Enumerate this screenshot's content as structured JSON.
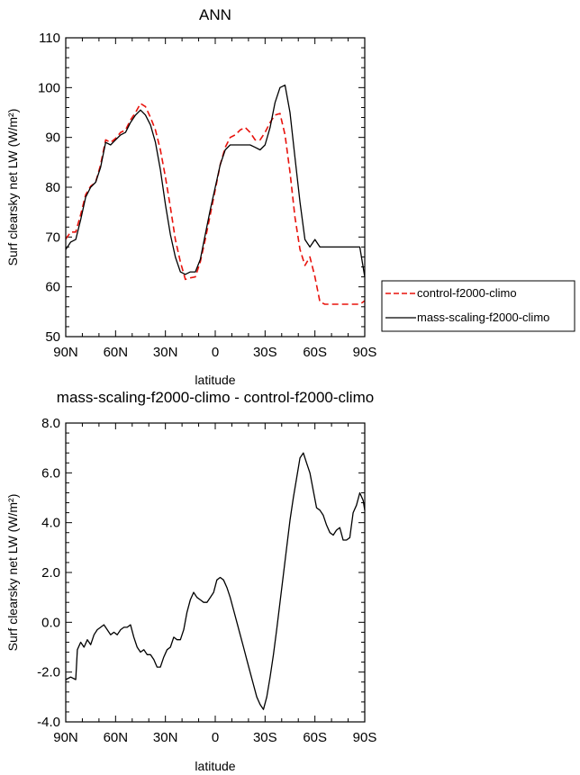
{
  "chart_data": [
    {
      "type": "line",
      "title": "ANN",
      "xlabel": "latitude",
      "ylabel": "Surf clearsky net LW (W/m²)",
      "xlim": [
        90,
        -90
      ],
      "ylim": [
        50,
        110
      ],
      "xticks": [
        90,
        60,
        30,
        0,
        -30,
        -60,
        -90
      ],
      "xtick_labels": [
        "90N",
        "60N",
        "30N",
        "0",
        "30S",
        "60S",
        "90S"
      ],
      "yticks": [
        50,
        60,
        70,
        80,
        90,
        100,
        110
      ],
      "ytick_labels": [
        "50",
        "60",
        "70",
        "80",
        "90",
        "100",
        "110"
      ],
      "legend_position": "right",
      "series": [
        {
          "name": "control-f2000-climo",
          "color": "#e8120c",
          "dash": "dashed",
          "x": [
            90,
            87,
            84,
            81,
            78,
            75,
            72,
            69,
            66,
            63,
            60,
            57,
            54,
            51,
            48,
            45,
            42,
            39,
            36,
            33,
            30,
            27,
            24,
            21,
            18,
            15,
            12,
            9,
            6,
            3,
            0,
            -3,
            -6,
            -9,
            -12,
            -15,
            -18,
            -21,
            -24,
            -27,
            -30,
            -33,
            -36,
            -39,
            -42,
            -45,
            -48,
            -51,
            -54,
            -57,
            -60,
            -63,
            -66,
            -69,
            -72,
            -75,
            -78,
            -81,
            -84,
            -87,
            -90
          ],
          "y": [
            69.6,
            71.0,
            71.0,
            74.5,
            78.5,
            80.2,
            81.0,
            84.5,
            89.5,
            89.0,
            89.8,
            91.0,
            91.5,
            93.5,
            95.0,
            96.8,
            96.2,
            94.0,
            91.5,
            87.5,
            82.0,
            76.0,
            69.5,
            65.0,
            61.5,
            61.8,
            62.0,
            65.0,
            69.5,
            74.5,
            79.5,
            84.5,
            88.0,
            90.0,
            90.5,
            91.5,
            92.0,
            91.0,
            89.5,
            89.5,
            91.0,
            93.0,
            94.5,
            94.8,
            90.5,
            83.0,
            74.0,
            67.5,
            64.3,
            66.0,
            62.0,
            57.0,
            56.5,
            56.5,
            56.5,
            56.5,
            56.5,
            56.5,
            56.5,
            56.5,
            57.2
          ]
        },
        {
          "name": "mass-scaling-f2000-climo",
          "color": "#000000",
          "dash": "solid",
          "x": [
            90,
            87,
            84,
            81,
            78,
            75,
            72,
            69,
            66,
            63,
            60,
            57,
            54,
            51,
            48,
            45,
            42,
            39,
            36,
            33,
            30,
            27,
            24,
            21,
            18,
            15,
            12,
            9,
            6,
            3,
            0,
            -3,
            -6,
            -9,
            -12,
            -15,
            -18,
            -21,
            -24,
            -27,
            -30,
            -33,
            -36,
            -39,
            -42,
            -45,
            -48,
            -51,
            -54,
            -57,
            -60,
            -63,
            -66,
            -69,
            -72,
            -75,
            -78,
            -81,
            -84,
            -87,
            -90
          ],
          "y": [
            67.5,
            69.0,
            69.5,
            73.5,
            78.0,
            80.0,
            81.0,
            84.0,
            89.0,
            88.5,
            89.5,
            90.5,
            91.0,
            93.0,
            94.5,
            95.5,
            94.5,
            92.5,
            89.0,
            83.5,
            76.5,
            70.5,
            66.0,
            63.0,
            62.5,
            63.0,
            63.0,
            65.5,
            70.5,
            75.5,
            80.0,
            84.5,
            87.5,
            88.5,
            88.5,
            88.5,
            88.5,
            88.5,
            88.0,
            87.5,
            88.5,
            92.0,
            97.0,
            100.0,
            100.5,
            95.0,
            86.0,
            77.0,
            69.5,
            68.0,
            69.5,
            68.0,
            68.0,
            68.0,
            68.0,
            68.0,
            68.0,
            68.0,
            68.0,
            68.0,
            62.0
          ]
        }
      ]
    },
    {
      "type": "line",
      "title": "mass-scaling-f2000-climo - control-f2000-climo",
      "xlabel": "latitude",
      "ylabel": "Surf clearsky net LW (W/m²)",
      "xlim": [
        90,
        -90
      ],
      "ylim": [
        -4,
        8
      ],
      "xticks": [
        90,
        60,
        30,
        0,
        -30,
        -60,
        -90
      ],
      "xtick_labels": [
        "90N",
        "60N",
        "30N",
        "0",
        "30S",
        "60S",
        "90S"
      ],
      "yticks": [
        -4,
        -2,
        0,
        2,
        4,
        6,
        8
      ],
      "ytick_labels": [
        "-4.0",
        "-2.0",
        "0.0",
        "2.0",
        "4.0",
        "6.0",
        "8.0"
      ],
      "series": [
        {
          "color": "#000000",
          "dash": "solid",
          "x": [
            90,
            87,
            84,
            83,
            81,
            79,
            77,
            75,
            73,
            71,
            69,
            67,
            65,
            63,
            61,
            59,
            57,
            55,
            53,
            51,
            49,
            47,
            45,
            43,
            41,
            39,
            37,
            35,
            33,
            31,
            29,
            27,
            25,
            23,
            21,
            19,
            17,
            15,
            13,
            11,
            9,
            7,
            5,
            3,
            1,
            -1,
            -3,
            -5,
            -7,
            -9,
            -11,
            -13,
            -15,
            -17,
            -19,
            -21,
            -23,
            -25,
            -27,
            -29,
            -31,
            -33,
            -35,
            -37,
            -39,
            -41,
            -43,
            -45,
            -47,
            -49,
            -51,
            -53,
            -55,
            -57,
            -59,
            -61,
            -63,
            -65,
            -67,
            -69,
            -71,
            -73,
            -75,
            -77,
            -79,
            -81,
            -83,
            -85,
            -87,
            -89,
            -90
          ],
          "y": [
            -2.3,
            -2.2,
            -2.3,
            -1.1,
            -0.8,
            -1.0,
            -0.7,
            -0.9,
            -0.5,
            -0.3,
            -0.2,
            -0.1,
            -0.3,
            -0.5,
            -0.4,
            -0.5,
            -0.3,
            -0.2,
            -0.2,
            -0.1,
            -0.6,
            -1.0,
            -1.2,
            -1.1,
            -1.3,
            -1.3,
            -1.5,
            -1.8,
            -1.8,
            -1.4,
            -1.1,
            -1.0,
            -0.6,
            -0.7,
            -0.7,
            -0.3,
            0.4,
            0.9,
            1.2,
            1.0,
            0.9,
            0.8,
            0.8,
            1.0,
            1.2,
            1.7,
            1.8,
            1.7,
            1.4,
            1.0,
            0.5,
            0.0,
            -0.5,
            -1.0,
            -1.5,
            -2.0,
            -2.5,
            -3.0,
            -3.3,
            -3.5,
            -3.0,
            -2.2,
            -1.3,
            -0.3,
            0.8,
            1.9,
            3.0,
            4.1,
            5.0,
            5.8,
            6.6,
            6.8,
            6.4,
            6.0,
            5.3,
            4.6,
            4.5,
            4.3,
            3.9,
            3.6,
            3.5,
            3.7,
            3.8,
            3.3,
            3.3,
            3.4,
            4.4,
            4.7,
            5.2,
            4.9,
            4.5
          ]
        }
      ]
    }
  ]
}
